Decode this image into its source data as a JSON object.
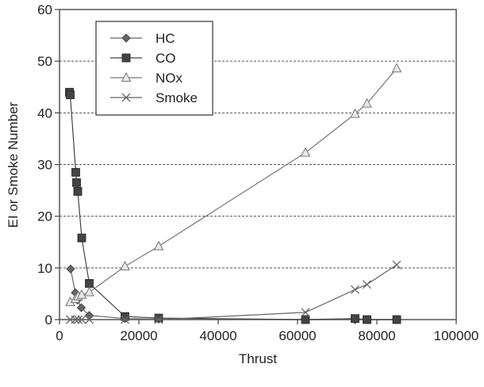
{
  "chart_data": {
    "type": "line",
    "xlabel": "Thrust",
    "ylabel": "EI or Smoke Number",
    "xlim": [
      0,
      100000
    ],
    "ylim": [
      0,
      60
    ],
    "x_ticks": [
      "0",
      "20000",
      "40000",
      "60000",
      "80000",
      "100000"
    ],
    "y_ticks": [
      "0",
      "10",
      "20",
      "30",
      "40",
      "50",
      "60"
    ],
    "x_tick_values": [
      0,
      20000,
      40000,
      60000,
      80000,
      100000
    ],
    "y_tick_values": [
      0,
      10,
      20,
      30,
      40,
      50,
      60
    ],
    "grid": "horizontal dashed",
    "legend": "top-left",
    "series": [
      {
        "name": "HC",
        "marker": "diamond",
        "color": "#666666",
        "points": [
          [
            2800,
            9.8
          ],
          [
            4000,
            5.2
          ],
          [
            4500,
            3.8
          ],
          [
            5500,
            2.3
          ],
          [
            7500,
            0.8
          ],
          [
            16500,
            0.2
          ],
          [
            25000,
            0.1
          ],
          [
            62000,
            0.0
          ],
          [
            74500,
            0.0
          ],
          [
            77500,
            0.0
          ],
          [
            85000,
            0.0
          ]
        ]
      },
      {
        "name": "CO",
        "marker": "square",
        "color": "#444444",
        "points": [
          [
            2500,
            44.0
          ],
          [
            2700,
            43.5
          ],
          [
            4100,
            28.5
          ],
          [
            4300,
            26.5
          ],
          [
            4600,
            24.8
          ],
          [
            5600,
            15.8
          ],
          [
            7500,
            7.0
          ],
          [
            16500,
            0.6
          ],
          [
            25000,
            0.3
          ],
          [
            62000,
            0.0
          ],
          [
            74500,
            0.2
          ],
          [
            77500,
            0.0
          ],
          [
            85000,
            0.0
          ]
        ]
      },
      {
        "name": "NOx",
        "marker": "triangle",
        "color": "#777777",
        "points": [
          [
            2700,
            3.4
          ],
          [
            4000,
            4.0
          ],
          [
            4700,
            4.5
          ],
          [
            5600,
            4.8
          ],
          [
            7500,
            5.3
          ],
          [
            16500,
            10.3
          ],
          [
            25000,
            14.2
          ],
          [
            62000,
            32.3
          ],
          [
            74500,
            39.8
          ],
          [
            77500,
            41.8
          ],
          [
            85000,
            48.6
          ]
        ]
      },
      {
        "name": "Smoke",
        "marker": "x",
        "color": "#666666",
        "points": [
          [
            2700,
            0.0
          ],
          [
            4000,
            0.0
          ],
          [
            4700,
            0.0
          ],
          [
            5600,
            0.0
          ],
          [
            7500,
            0.0
          ],
          [
            16500,
            0.0
          ],
          [
            25000,
            0.0
          ],
          [
            62000,
            1.4
          ],
          [
            74500,
            5.8
          ],
          [
            77500,
            6.8
          ],
          [
            85000,
            10.6
          ]
        ]
      }
    ]
  }
}
